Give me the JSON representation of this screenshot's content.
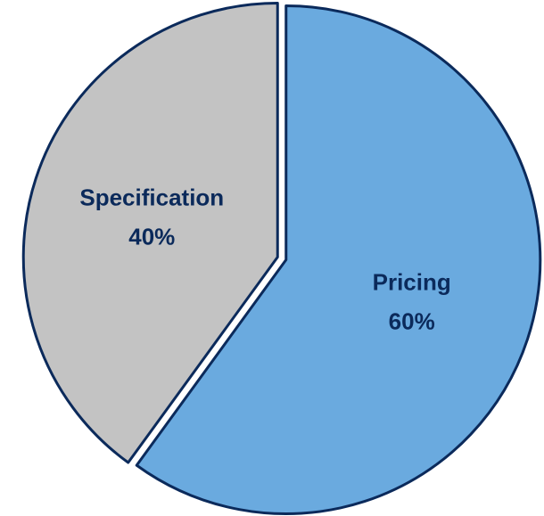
{
  "chart_data": {
    "type": "pie",
    "title": "",
    "slices": [
      {
        "label": "Pricing",
        "value": 60,
        "value_label": "60%",
        "color": "#6aaadf"
      },
      {
        "label": "Specification",
        "value": 40,
        "value_label": "40%",
        "color": "#c3c3c3"
      }
    ],
    "start_angle_deg": 0,
    "direction": "clockwise",
    "label_color": "#0b2a5b",
    "border_color": "#0b2a5b",
    "legend": "none"
  }
}
